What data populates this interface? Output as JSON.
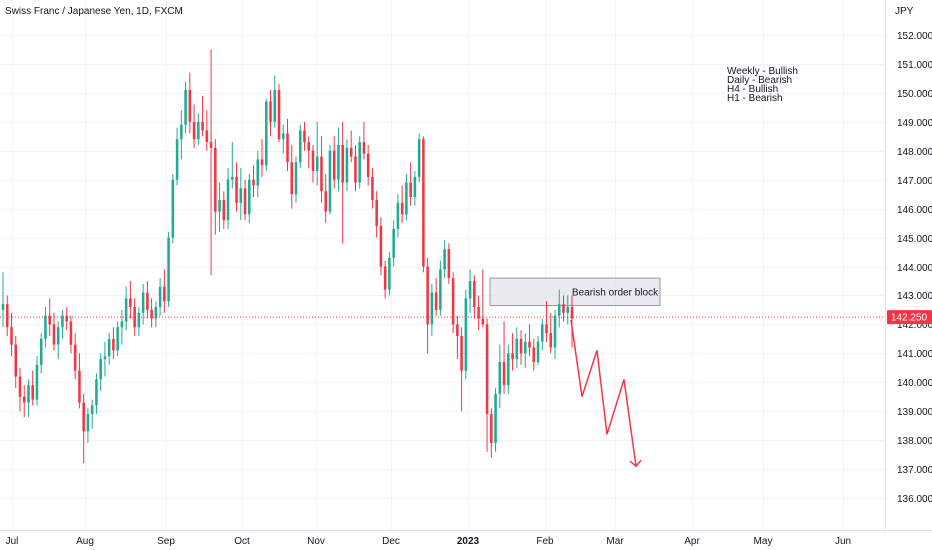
{
  "chart_data": {
    "type": "candlestick",
    "title": "Swiss Franc / Japanese Yen, 1D, FXCM",
    "currency": "JPY",
    "y_ticks": [
      "136.000",
      "137.000",
      "138.000",
      "139.000",
      "140.000",
      "141.000",
      "142.000",
      "143.000",
      "144.000",
      "145.000",
      "146.000",
      "147.000",
      "148.000",
      "149.000",
      "150.000",
      "151.000",
      "152.000"
    ],
    "ylim": [
      135.6,
      152.4
    ],
    "x_ticks": [
      {
        "label": "Jul",
        "bold": false
      },
      {
        "label": "Aug",
        "bold": false
      },
      {
        "label": "Sep",
        "bold": false
      },
      {
        "label": "Oct",
        "bold": false
      },
      {
        "label": "Nov",
        "bold": false
      },
      {
        "label": "Dec",
        "bold": false
      },
      {
        "label": "2023",
        "bold": true
      },
      {
        "label": "Feb",
        "bold": false
      },
      {
        "label": "Mar",
        "bold": false
      },
      {
        "label": "Apr",
        "bold": false
      },
      {
        "label": "May",
        "bold": false
      },
      {
        "label": "Jun",
        "bold": false
      }
    ],
    "last_price": "142.250",
    "last_price_value": 142.25,
    "order_block": {
      "label": "Bearish order block",
      "top": 143.6,
      "bottom": 142.65
    },
    "bias_notes": [
      "Weekly - Bullish",
      "Daily - Bearish",
      "H4 - Bullish",
      "H1 - Bearish"
    ],
    "projection": [
      142.15,
      139.5,
      141.1,
      138.2,
      140.1,
      137.1
    ],
    "colors": {
      "up": "#22ab94",
      "down": "#f23645",
      "projection": "#f23645",
      "grid": "#f0f3fa",
      "box_fill": "#e0e3eb",
      "box_stroke": "#9598a1",
      "price_line": "#f23645"
    },
    "candles": [
      [
        142.5,
        143.8,
        141.9,
        142.7
      ],
      [
        142.7,
        143.0,
        141.6,
        141.9
      ],
      [
        141.9,
        142.4,
        140.9,
        141.3
      ],
      [
        141.3,
        141.6,
        139.8,
        140.2
      ],
      [
        140.2,
        140.5,
        139.0,
        139.5
      ],
      [
        139.5,
        139.9,
        138.8,
        139.3
      ],
      [
        139.3,
        140.1,
        138.8,
        139.9
      ],
      [
        139.9,
        140.4,
        139.2,
        139.4
      ],
      [
        139.4,
        140.9,
        139.2,
        140.6
      ],
      [
        140.6,
        141.7,
        140.3,
        141.5
      ],
      [
        141.5,
        142.6,
        141.2,
        142.3
      ],
      [
        142.3,
        142.9,
        141.6,
        142.0
      ],
      [
        142.0,
        142.4,
        141.1,
        141.3
      ],
      [
        141.3,
        142.1,
        140.8,
        141.9
      ],
      [
        141.9,
        142.5,
        141.5,
        142.3
      ],
      [
        142.3,
        142.6,
        141.8,
        142.1
      ],
      [
        142.1,
        142.3,
        141.0,
        141.3
      ],
      [
        141.3,
        141.7,
        140.1,
        140.4
      ],
      [
        140.4,
        141.0,
        139.1,
        139.3
      ],
      [
        139.3,
        139.6,
        137.2,
        138.3
      ],
      [
        138.3,
        139.1,
        137.9,
        138.9
      ],
      [
        138.9,
        139.4,
        138.4,
        139.2
      ],
      [
        139.2,
        140.3,
        138.9,
        140.1
      ],
      [
        140.1,
        141.0,
        139.7,
        140.8
      ],
      [
        140.8,
        141.4,
        140.2,
        140.9
      ],
      [
        140.9,
        141.7,
        140.6,
        141.5
      ],
      [
        141.5,
        141.9,
        140.8,
        141.1
      ],
      [
        141.1,
        142.1,
        140.9,
        141.9
      ],
      [
        141.9,
        142.5,
        141.3,
        142.1
      ],
      [
        142.1,
        143.3,
        141.8,
        142.9
      ],
      [
        142.9,
        143.5,
        142.2,
        142.6
      ],
      [
        142.6,
        142.9,
        141.6,
        141.9
      ],
      [
        141.9,
        142.6,
        141.6,
        142.4
      ],
      [
        142.4,
        143.4,
        142.0,
        143.1
      ],
      [
        143.1,
        143.5,
        142.2,
        142.5
      ],
      [
        142.5,
        142.9,
        141.9,
        142.2
      ],
      [
        142.2,
        142.8,
        141.9,
        142.6
      ],
      [
        142.6,
        143.6,
        142.3,
        143.3
      ],
      [
        143.3,
        143.9,
        142.4,
        142.8
      ],
      [
        142.8,
        145.2,
        142.6,
        145.0
      ],
      [
        145.0,
        147.2,
        144.8,
        147.0
      ],
      [
        147.0,
        148.8,
        146.8,
        148.4
      ],
      [
        148.4,
        149.4,
        147.7,
        148.9
      ],
      [
        148.9,
        150.4,
        148.6,
        150.1
      ],
      [
        150.1,
        150.7,
        148.6,
        149.0
      ],
      [
        149.0,
        149.6,
        148.1,
        148.4
      ],
      [
        148.4,
        149.3,
        148.2,
        149.0
      ],
      [
        149.0,
        149.9,
        148.5,
        148.7
      ],
      [
        148.7,
        149.4,
        148.0,
        148.3
      ],
      [
        148.3,
        151.5,
        143.7,
        148.1
      ],
      [
        148.1,
        148.4,
        145.1,
        145.9
      ],
      [
        145.9,
        146.9,
        145.2,
        146.3
      ],
      [
        146.3,
        146.6,
        145.3,
        145.6
      ],
      [
        145.6,
        147.4,
        145.3,
        147.0
      ],
      [
        147.0,
        148.3,
        146.7,
        147.1
      ],
      [
        147.1,
        147.6,
        145.9,
        146.2
      ],
      [
        146.2,
        147.4,
        145.6,
        146.7
      ],
      [
        146.7,
        147.0,
        145.6,
        145.8
      ],
      [
        145.8,
        147.2,
        145.5,
        147.0
      ],
      [
        147.0,
        147.5,
        146.4,
        146.8
      ],
      [
        146.8,
        148.0,
        146.4,
        147.7
      ],
      [
        147.7,
        148.4,
        147.1,
        147.5
      ],
      [
        147.5,
        149.8,
        147.3,
        149.7
      ],
      [
        149.7,
        150.1,
        148.5,
        149.0
      ],
      [
        149.0,
        150.6,
        148.8,
        150.1
      ],
      [
        150.1,
        150.3,
        148.3,
        148.4
      ],
      [
        148.4,
        148.9,
        147.9,
        148.6
      ],
      [
        148.6,
        149.1,
        147.3,
        147.6
      ],
      [
        147.6,
        148.2,
        146.0,
        146.5
      ],
      [
        146.5,
        147.8,
        146.2,
        147.6
      ],
      [
        147.6,
        148.9,
        147.4,
        148.7
      ],
      [
        148.7,
        149.0,
        148.0,
        148.3
      ],
      [
        148.3,
        148.5,
        147.4,
        148.0
      ],
      [
        148.0,
        148.2,
        146.9,
        147.3
      ],
      [
        147.3,
        149.0,
        146.8,
        147.8
      ],
      [
        147.8,
        148.5,
        146.2,
        146.6
      ],
      [
        146.6,
        147.2,
        145.5,
        145.9
      ],
      [
        145.9,
        148.2,
        145.8,
        148.0
      ],
      [
        148.0,
        148.5,
        146.7,
        147.0
      ],
      [
        147.0,
        148.8,
        146.6,
        148.2
      ],
      [
        148.2,
        149.0,
        144.8,
        146.9
      ],
      [
        146.9,
        148.4,
        146.6,
        148.1
      ],
      [
        148.1,
        148.7,
        147.6,
        147.8
      ],
      [
        147.8,
        148.2,
        146.6,
        146.9
      ],
      [
        146.9,
        148.5,
        146.7,
        148.3
      ],
      [
        148.3,
        149.0,
        147.7,
        147.9
      ],
      [
        147.9,
        148.2,
        146.8,
        147.1
      ],
      [
        147.1,
        147.4,
        146.0,
        146.3
      ],
      [
        146.3,
        146.6,
        145.0,
        145.4
      ],
      [
        145.4,
        145.7,
        143.7,
        144.0
      ],
      [
        144.0,
        144.2,
        142.9,
        143.2
      ],
      [
        143.2,
        144.5,
        143.0,
        144.3
      ],
      [
        144.3,
        145.6,
        144.0,
        145.3
      ],
      [
        145.3,
        146.5,
        145.0,
        146.2
      ],
      [
        146.2,
        146.8,
        145.5,
        145.8
      ],
      [
        145.8,
        147.2,
        145.6,
        146.9
      ],
      [
        146.9,
        147.6,
        146.1,
        146.4
      ],
      [
        146.4,
        147.3,
        146.1,
        147.1
      ],
      [
        147.1,
        148.6,
        146.9,
        148.4
      ],
      [
        148.4,
        148.5,
        143.8,
        144.0
      ],
      [
        144.0,
        144.3,
        141.0,
        142.0
      ],
      [
        142.0,
        143.4,
        141.6,
        143.1
      ],
      [
        143.1,
        143.6,
        142.3,
        142.5
      ],
      [
        142.5,
        144.2,
        142.3,
        143.9
      ],
      [
        143.9,
        144.9,
        143.6,
        144.6
      ],
      [
        144.6,
        144.8,
        143.4,
        143.6
      ],
      [
        143.6,
        143.8,
        141.7,
        142.0
      ],
      [
        142.0,
        142.3,
        140.8,
        141.6
      ],
      [
        141.6,
        141.9,
        139.0,
        140.4
      ],
      [
        140.4,
        143.2,
        140.1,
        142.9
      ],
      [
        142.9,
        143.9,
        142.4,
        143.5
      ],
      [
        143.5,
        143.7,
        142.2,
        142.6
      ],
      [
        142.6,
        143.0,
        141.8,
        142.2
      ],
      [
        142.2,
        143.9,
        141.9,
        142.0
      ],
      [
        142.0,
        142.2,
        137.6,
        138.9
      ],
      [
        138.9,
        139.1,
        137.4,
        137.9
      ],
      [
        137.9,
        139.8,
        137.6,
        139.6
      ],
      [
        139.6,
        141.3,
        139.1,
        140.7
      ],
      [
        140.7,
        142.1,
        139.6,
        139.9
      ],
      [
        139.9,
        141.3,
        139.6,
        141.0
      ],
      [
        141.0,
        141.7,
        140.4,
        140.8
      ],
      [
        140.8,
        141.9,
        140.5,
        141.5
      ],
      [
        141.5,
        141.8,
        140.6,
        141.0
      ],
      [
        141.0,
        141.7,
        140.5,
        141.4
      ],
      [
        141.4,
        142.0,
        140.9,
        141.2
      ],
      [
        141.2,
        141.5,
        140.4,
        140.7
      ],
      [
        140.7,
        141.6,
        140.6,
        141.4
      ],
      [
        141.4,
        142.2,
        141.1,
        142.0
      ],
      [
        142.0,
        142.8,
        141.4,
        141.7
      ],
      [
        141.7,
        142.4,
        141.0,
        141.2
      ],
      [
        141.2,
        142.5,
        140.8,
        142.3
      ],
      [
        142.3,
        143.2,
        141.9,
        142.7
      ],
      [
        142.7,
        143.0,
        142.1,
        142.4
      ],
      [
        142.4,
        143.0,
        142.0,
        142.6
      ],
      [
        142.6,
        143.0,
        141.2,
        142.2
      ]
    ]
  }
}
